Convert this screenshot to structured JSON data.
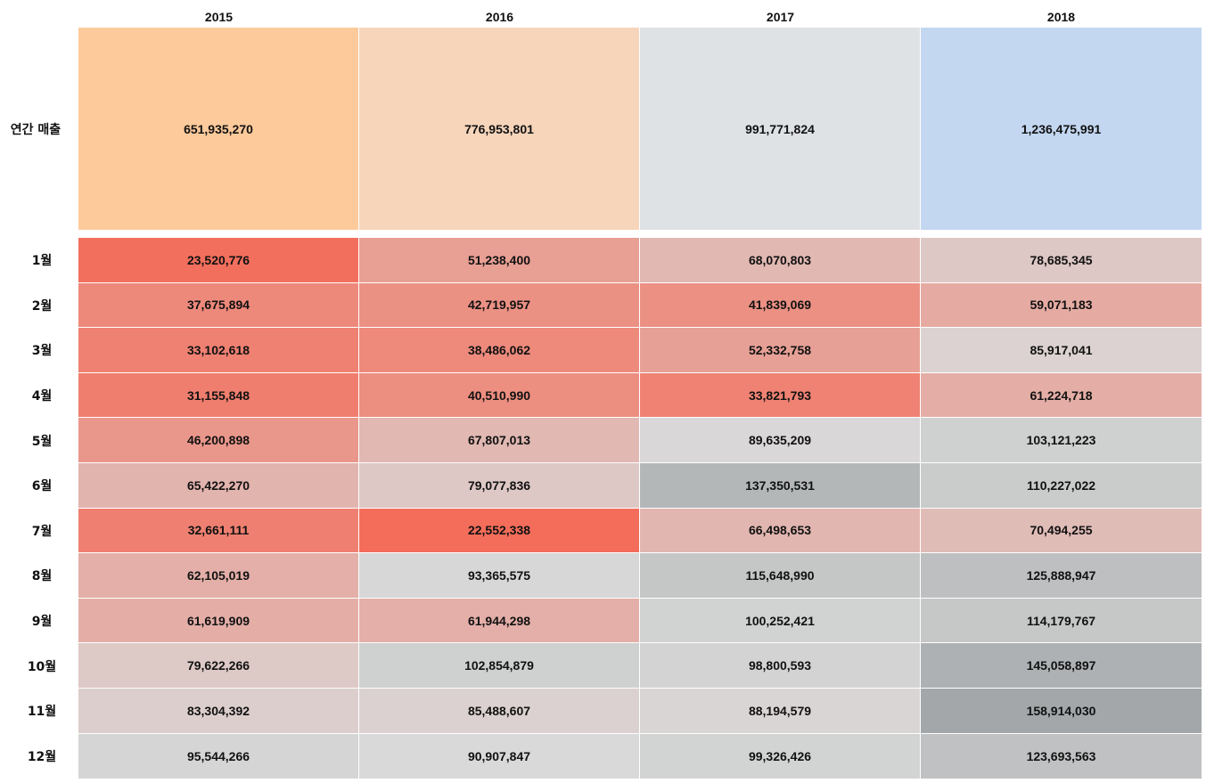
{
  "chart_data": {
    "type": "heatmap",
    "columns": [
      "2015",
      "2016",
      "2017",
      "2018"
    ],
    "annual": {
      "label": "연간 매출",
      "values": [
        "651,935,270",
        "776,953,801",
        "991,771,824",
        "1,236,475,991"
      ],
      "colors": [
        "#fdca9b",
        "#f6d5bb",
        "#dfe2e5",
        "#c3d7f1"
      ]
    },
    "months": {
      "labels": [
        "1월",
        "2월",
        "3월",
        "4월",
        "5월",
        "6월",
        "7월",
        "8월",
        "9월",
        "10월",
        "11월",
        "12월"
      ],
      "values": [
        [
          "23,520,776",
          "51,238,400",
          "68,070,803",
          "78,685,345"
        ],
        [
          "37,675,894",
          "42,719,957",
          "41,839,069",
          "59,071,183"
        ],
        [
          "33,102,618",
          "38,486,062",
          "52,332,758",
          "85,917,041"
        ],
        [
          "31,155,848",
          "40,510,990",
          "33,821,793",
          "61,224,718"
        ],
        [
          "46,200,898",
          "67,807,013",
          "89,635,209",
          "103,121,223"
        ],
        [
          "65,422,270",
          "79,077,836",
          "137,350,531",
          "110,227,022"
        ],
        [
          "32,661,111",
          "22,552,338",
          "66,498,653",
          "70,494,255"
        ],
        [
          "62,105,019",
          "93,365,575",
          "115,648,990",
          "125,888,947"
        ],
        [
          "61,619,909",
          "61,944,298",
          "100,252,421",
          "114,179,767"
        ],
        [
          "79,622,266",
          "102,854,879",
          "98,800,593",
          "145,058,897"
        ],
        [
          "83,304,392",
          "85,488,607",
          "88,194,579",
          "158,914,030"
        ],
        [
          "95,544,266",
          "90,907,847",
          "99,326,426",
          "123,693,563"
        ]
      ]
    },
    "colormap": {
      "low": "#f46d5a",
      "mid": "#d9d9d9",
      "high": "#a3a7a9"
    }
  }
}
